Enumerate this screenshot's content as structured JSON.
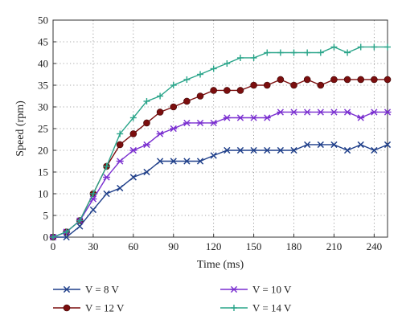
{
  "chart_data": {
    "type": "line",
    "title": "",
    "xlabel": "Time (ms)",
    "ylabel": "Speed (rpm)",
    "xlim": [
      0,
      250
    ],
    "ylim": [
      0,
      50
    ],
    "xticks": [
      0,
      30,
      60,
      90,
      120,
      150,
      180,
      210,
      240
    ],
    "yticks": [
      0,
      5,
      10,
      15,
      20,
      25,
      30,
      35,
      40,
      45,
      50
    ],
    "grid": true,
    "legend_position": "bottom",
    "x": [
      0,
      10,
      20,
      30,
      40,
      50,
      60,
      70,
      80,
      90,
      100,
      110,
      120,
      130,
      140,
      150,
      160,
      170,
      180,
      190,
      200,
      210,
      220,
      230,
      240,
      250
    ],
    "series": [
      {
        "name": "V = 8 V",
        "color": "#1f3f8a",
        "marker": "x",
        "values": [
          0,
          0,
          2.5,
          6.3,
          10,
          11.3,
          13.8,
          15,
          17.5,
          17.5,
          17.5,
          17.5,
          18.8,
          20,
          20,
          20,
          20,
          20,
          20,
          21.3,
          21.3,
          21.3,
          20,
          21.3,
          20,
          21.3
        ]
      },
      {
        "name": "V = 12 V",
        "color": "#7b0e0e",
        "marker": "circle",
        "values": [
          0,
          1.2,
          3.8,
          10,
          16.3,
          21.3,
          23.8,
          26.3,
          28.8,
          30,
          31.3,
          32.5,
          33.8,
          33.8,
          33.8,
          35,
          35,
          36.3,
          35,
          36.3,
          35,
          36.3,
          36.3,
          36.3,
          36.3,
          36.3
        ]
      },
      {
        "name": "V = 10 V",
        "color": "#7a2fd0",
        "marker": "asterisk",
        "values": [
          0,
          1.2,
          3.8,
          8.8,
          13.8,
          17.5,
          20,
          21.3,
          23.8,
          25,
          26.3,
          26.3,
          26.3,
          27.5,
          27.5,
          27.5,
          27.5,
          28.8,
          28.8,
          28.8,
          28.8,
          28.8,
          28.8,
          27.5,
          28.8,
          28.8
        ]
      },
      {
        "name": "V = 14 V",
        "color": "#2aa58a",
        "marker": "plus",
        "values": [
          0,
          1.2,
          3.8,
          10,
          16.3,
          23.8,
          27.5,
          31.3,
          32.5,
          35,
          36.3,
          37.5,
          38.8,
          40,
          41.3,
          41.3,
          42.5,
          42.5,
          42.5,
          42.5,
          42.5,
          43.8,
          42.5,
          43.8,
          43.8,
          43.8
        ]
      }
    ]
  }
}
